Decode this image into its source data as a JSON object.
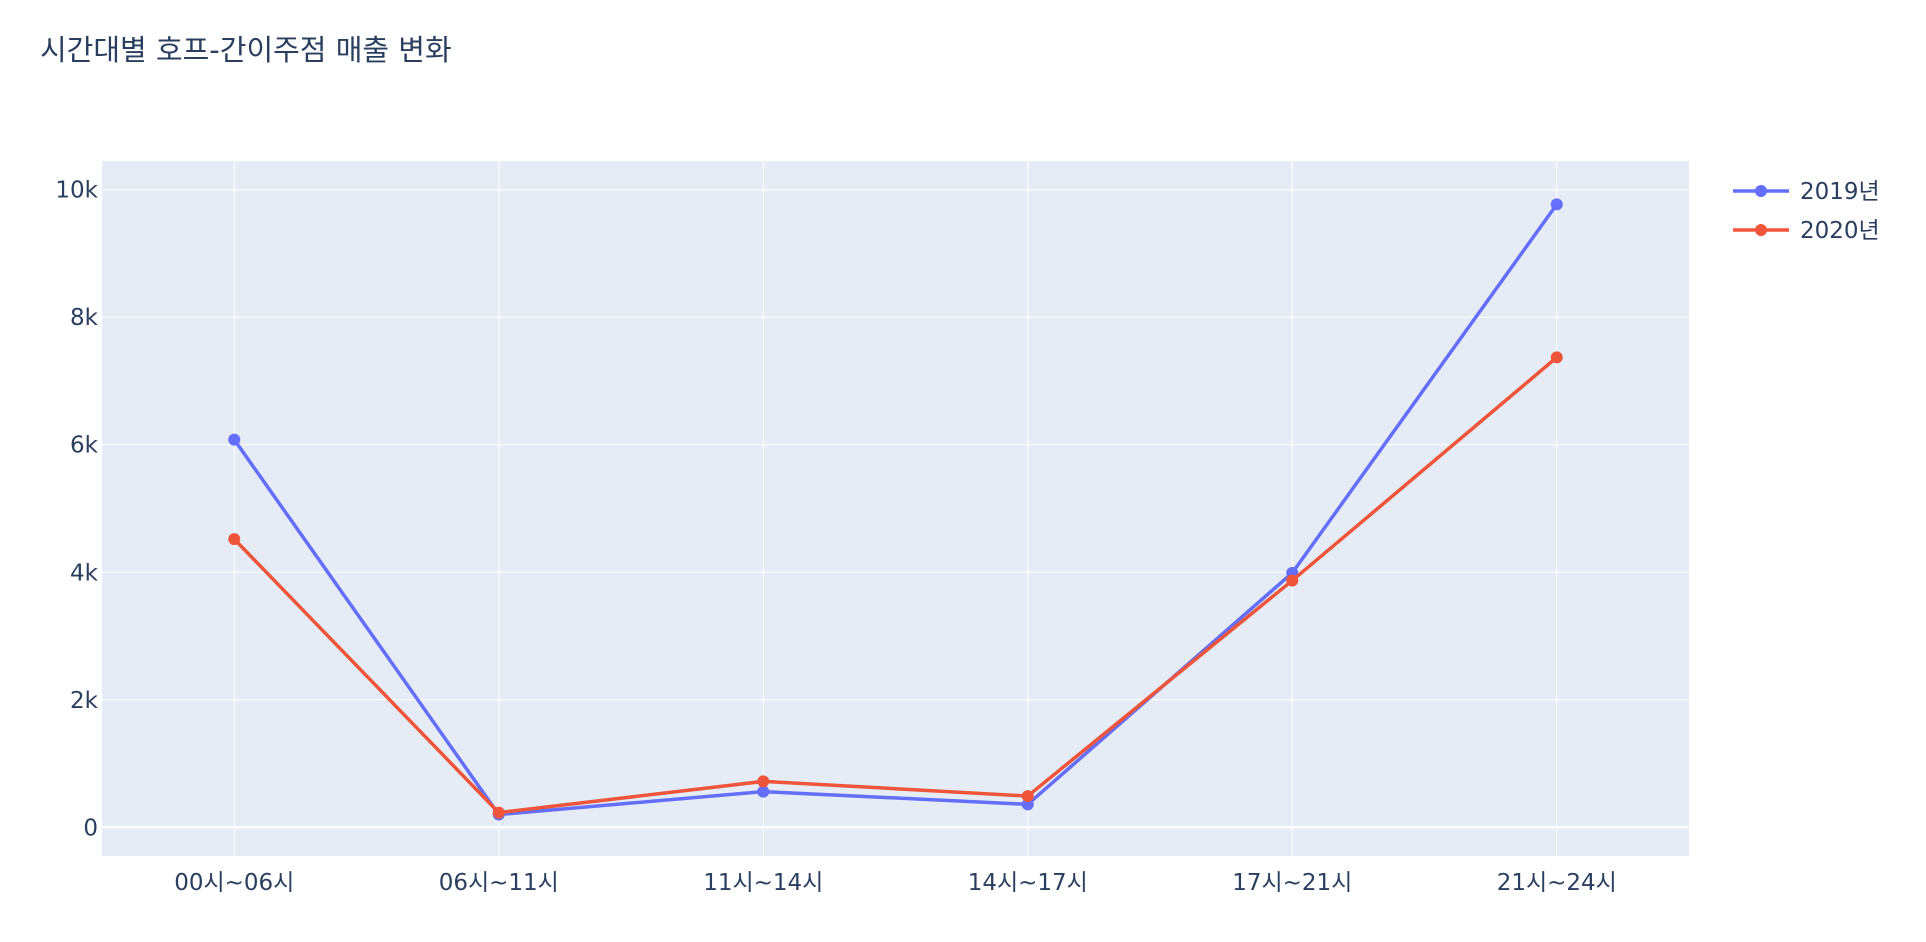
{
  "chart_data": {
    "type": "line",
    "title": "시간대별 호프-간이주점 매출 변화",
    "xlabel": "",
    "ylabel": "",
    "categories": [
      "00시~06시",
      "06시~11시",
      "11시~14시",
      "14시~17시",
      "17시~21시",
      "21시~24시"
    ],
    "series": [
      {
        "name": "2019년",
        "color": "#636efa",
        "values": [
          6080,
          200,
          560,
          360,
          3990,
          9770
        ]
      },
      {
        "name": "2020년",
        "color": "#EF553B",
        "values": [
          4520,
          230,
          720,
          490,
          3870,
          7370
        ]
      }
    ],
    "ylim": [
      -450,
      10450
    ],
    "yticks": [
      0,
      2000,
      4000,
      6000,
      8000,
      10000
    ],
    "ytick_labels": [
      "0",
      "2k",
      "4k",
      "6k",
      "8k",
      "10k"
    ],
    "grid": true,
    "legend_position": "top-right",
    "plot_background": "#E5ECF6",
    "grid_color": "#ffffff"
  }
}
